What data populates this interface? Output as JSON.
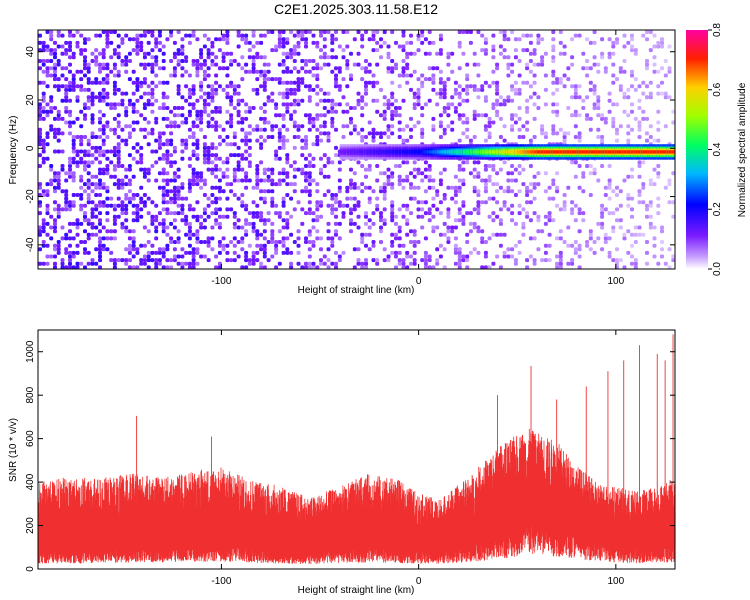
{
  "title": "C2E1.2025.303.11.58.E12",
  "colors": {
    "snr_line": "#f03030",
    "frame": "#000000",
    "background": "#ffffff"
  },
  "chart_data": [
    {
      "type": "heatmap",
      "title": "C2E1.2025.303.11.58.E12",
      "xlabel": "Height of straight line (km)",
      "ylabel": "Frequency (Hz)",
      "xlim": [
        -193,
        130
      ],
      "ylim": [
        -50,
        49
      ],
      "x_ticks": [
        -100,
        0,
        100
      ],
      "y_ticks": [
        -40,
        -20,
        0,
        20,
        40
      ],
      "colorbar": {
        "label": "Normalized spectral amplitude",
        "range": [
          0,
          0.8
        ],
        "ticks": [
          "0.0",
          "0.2",
          "0.4",
          "0.6",
          "0.8"
        ],
        "colormap": "rainbow (white → violet → blue → cyan → green → yellow → red → magenta)"
      },
      "features": [
        {
          "description_of_mark": "narrow band near 0 Hz",
          "frequency_hz": -1.5,
          "x_start_km": -40,
          "x_end_km": 130,
          "peak_amplitude": 0.72,
          "peak_region_km": [
            60,
            130
          ]
        }
      ],
      "noise": {
        "amplitude_left_km_-193": 0.1,
        "amplitude_right_km_130": 0.03
      }
    },
    {
      "type": "line",
      "xlabel": "Height of straight line (km)",
      "ylabel": "SNR (10 * v/v)",
      "xlim": [
        -193,
        130
      ],
      "ylim": [
        0,
        1100
      ],
      "x_ticks": [
        -100,
        0,
        100
      ],
      "y_ticks": [
        0,
        200,
        400,
        600,
        800,
        1000
      ],
      "envelope_points_km": [
        -193,
        -180,
        -160,
        -145,
        -130,
        -110,
        -100,
        -90,
        -70,
        -55,
        -40,
        -25,
        -10,
        0,
        10,
        25,
        40,
        55,
        62,
        70,
        80,
        90,
        100,
        110,
        120,
        130
      ],
      "typical_upper_snr": [
        400,
        420,
        420,
        440,
        420,
        460,
        470,
        430,
        380,
        330,
        380,
        440,
        410,
        350,
        320,
        420,
        560,
        650,
        620,
        590,
        480,
        400,
        380,
        360,
        380,
        420
      ],
      "typical_lower_snr": [
        80,
        80,
        90,
        100,
        100,
        110,
        110,
        100,
        80,
        70,
        90,
        100,
        90,
        80,
        80,
        100,
        150,
        200,
        210,
        190,
        160,
        120,
        100,
        90,
        90,
        100
      ],
      "spikes": [
        {
          "x_km": -143,
          "snr": 705
        },
        {
          "x_km": -105,
          "snr": 610
        },
        {
          "x_km": 40,
          "snr": 800
        },
        {
          "x_km": 57,
          "snr": 935
        },
        {
          "x_km": 70,
          "snr": 780
        },
        {
          "x_km": 85,
          "snr": 840
        },
        {
          "x_km": 96,
          "snr": 910
        },
        {
          "x_km": 104,
          "snr": 960
        },
        {
          "x_km": 112,
          "snr": 1030
        },
        {
          "x_km": 121,
          "snr": 990
        },
        {
          "x_km": 125,
          "snr": 960
        },
        {
          "x_km": 129,
          "snr": 1080
        }
      ]
    }
  ]
}
